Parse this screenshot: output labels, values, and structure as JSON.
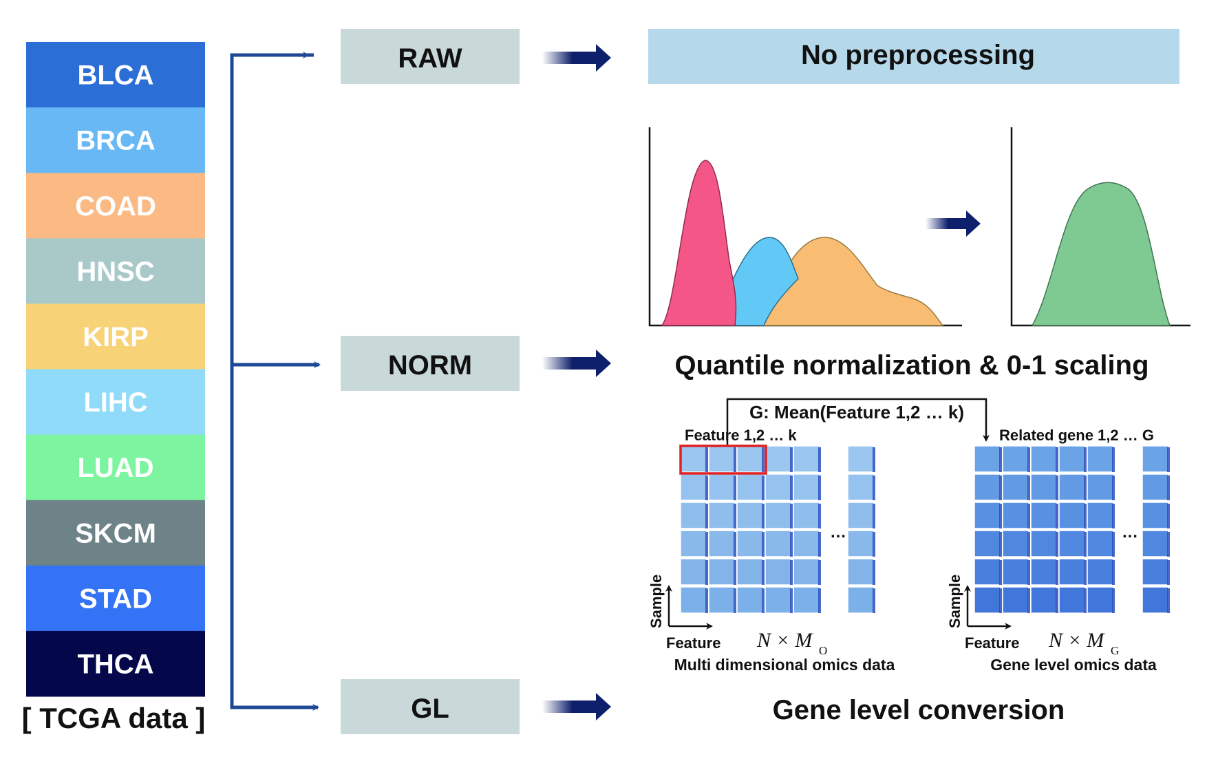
{
  "tcga": {
    "caption": "[ TCGA data ]",
    "cancers": [
      {
        "label": "BLCA",
        "color": "#2b6fd6"
      },
      {
        "label": "BRCA",
        "color": "#67b8f5"
      },
      {
        "label": "COAD",
        "color": "#fbb983"
      },
      {
        "label": "HNSC",
        "color": "#a9c9c8"
      },
      {
        "label": "KIRP",
        "color": "#f7d277"
      },
      {
        "label": "LIHC",
        "color": "#8fdbf9"
      },
      {
        "label": "LUAD",
        "color": "#7df5a0"
      },
      {
        "label": "SKCM",
        "color": "#6e8388"
      },
      {
        "label": "STAD",
        "color": "#3573f6"
      },
      {
        "label": "THCA",
        "color": "#04084a"
      }
    ]
  },
  "pipelines": {
    "raw": {
      "label": "RAW",
      "result": "No preprocessing"
    },
    "norm": {
      "label": "NORM",
      "result": "Quantile normalization & 0-1 scaling"
    },
    "gl": {
      "label": "GL",
      "result": "Gene level conversion"
    }
  },
  "gene_level": {
    "mean_label": "G: Mean(Feature 1,2 … k)",
    "left_matrix": {
      "top_label": "Feature 1,2 … k",
      "axis_y": "Sample",
      "axis_x": "Feature",
      "dim_main": "N × M",
      "dim_sub": "O",
      "caption": "Multi dimensional omics data",
      "ellipsis": "…"
    },
    "right_matrix": {
      "top_label": "Related gene 1,2 … G",
      "axis_y": "Sample",
      "axis_x": "Feature",
      "dim_main": "N × M",
      "dim_sub": "G",
      "caption": "Gene level omics data",
      "ellipsis": "…"
    }
  },
  "colors": {
    "arrow": "#0e1f6b",
    "branch": "#1e4896",
    "stage_box": "#c9d8d9",
    "raw_banner": "#b5d9ea",
    "dist_pink": "#f45787",
    "dist_blue": "#62c9f6",
    "dist_orange": "#f8bd73",
    "dist_green": "#7fc993",
    "highlight": "#e02020",
    "cell_light": "#9bc6ef",
    "cell_dark": "#4a8ee0"
  }
}
